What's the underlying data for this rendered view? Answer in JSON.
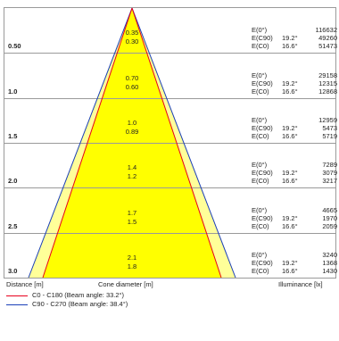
{
  "diagram": {
    "distance_label": "Distance [m]",
    "cone_label": "Cone diameter [m]",
    "illuminance_label": "Illuminance [lx]",
    "colors": {
      "outer_fill": "#ffff99",
      "inner_fill": "#ffff00",
      "c0_line": "#e8001c",
      "c90_line": "#1a3fb8",
      "grid": "#9a9a9a"
    }
  },
  "rows": [
    {
      "distance": "0.50",
      "c90_diameter": "0.35",
      "c0_diameter": "0.30",
      "e0_label": "E(0°)",
      "e0_value": "116632",
      "ec90_label": "E(C90)",
      "ec90_angle": "19.2°",
      "ec90_value": "49260",
      "ec0_label": "E(C0)",
      "ec0_angle": "16.6°",
      "ec0_value": "51473"
    },
    {
      "distance": "1.0",
      "c90_diameter": "0.70",
      "c0_diameter": "0.60",
      "e0_label": "E(0°)",
      "e0_value": "29158",
      "ec90_label": "E(C90)",
      "ec90_angle": "19.2°",
      "ec90_value": "12315",
      "ec0_label": "E(C0)",
      "ec0_angle": "16.6°",
      "ec0_value": "12868"
    },
    {
      "distance": "1.5",
      "c90_diameter": "1.0",
      "c0_diameter": "0.89",
      "e0_label": "E(0°)",
      "e0_value": "12959",
      "ec90_label": "E(C90)",
      "ec90_angle": "19.2°",
      "ec90_value": "5473",
      "ec0_label": "E(C0)",
      "ec0_angle": "16.6°",
      "ec0_value": "5719"
    },
    {
      "distance": "2.0",
      "c90_diameter": "1.4",
      "c0_diameter": "1.2",
      "e0_label": "E(0°)",
      "e0_value": "7289",
      "ec90_label": "E(C90)",
      "ec90_angle": "19.2°",
      "ec90_value": "3079",
      "ec0_label": "E(C0)",
      "ec0_angle": "16.6°",
      "ec0_value": "3217"
    },
    {
      "distance": "2.5",
      "c90_diameter": "1.7",
      "c0_diameter": "1.5",
      "e0_label": "E(0°)",
      "e0_value": "4665",
      "ec90_label": "E(C90)",
      "ec90_angle": "19.2°",
      "ec90_value": "1970",
      "ec0_label": "E(C0)",
      "ec0_angle": "16.6°",
      "ec0_value": "2059"
    },
    {
      "distance": "3.0",
      "c90_diameter": "2.1",
      "c0_diameter": "1.8",
      "e0_label": "E(0°)",
      "e0_value": "3240",
      "ec90_label": "E(C90)",
      "ec90_angle": "19.2°",
      "ec90_value": "1368",
      "ec0_label": "E(C0)",
      "ec0_angle": "16.6°",
      "ec0_value": "1430"
    }
  ],
  "legend": [
    {
      "text": "C0 - C180 (Beam angle: 33.2°)",
      "color": "#e8001c"
    },
    {
      "text": "C90 - C270 (Beam angle: 38.4°)",
      "color": "#1a3fb8"
    }
  ]
}
